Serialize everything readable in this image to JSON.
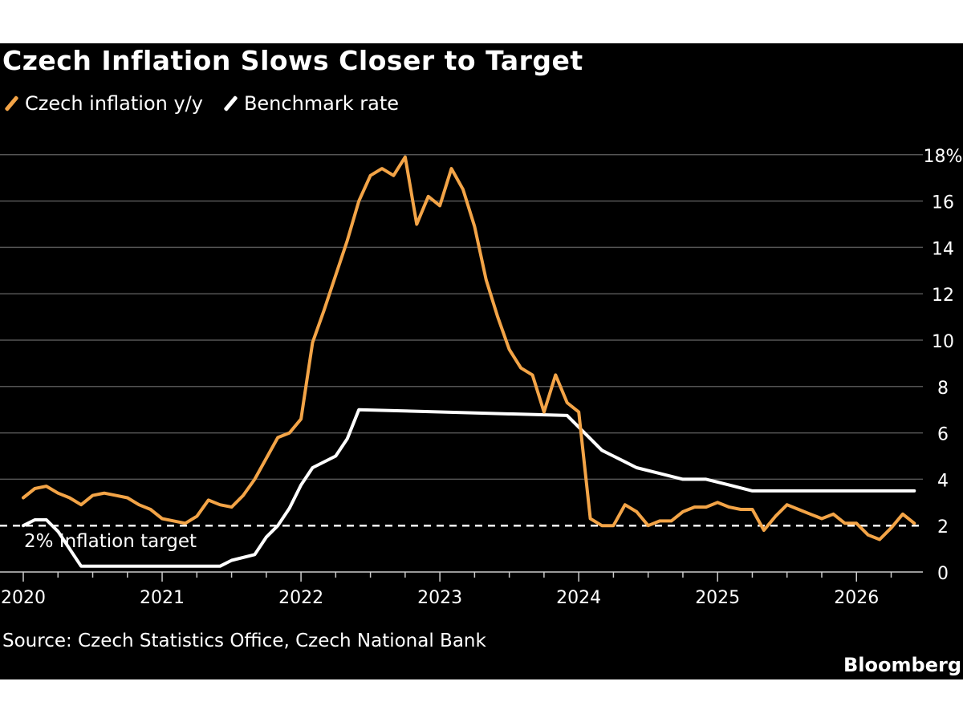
{
  "title": "Czech Inflation Slows Closer to Target",
  "source": "Source: Czech Statistics Office, Czech National Bank",
  "brand": "Bloomberg",
  "colors": {
    "background": "#000000",
    "inflation": "#f3a447",
    "rate": "#ffffff",
    "grid": "#555555",
    "text": "#ffffff"
  },
  "chart_data": {
    "type": "line",
    "title": "Czech Inflation Slows Closer to Target",
    "legend_position": "top-left",
    "grid": true,
    "x_unit": "month",
    "xlim": [
      "2020-01",
      "2026-07"
    ],
    "x_ticks": [
      "2020",
      "2021",
      "2022",
      "2023",
      "2024",
      "2025",
      "2026"
    ],
    "ylim": [
      0,
      18
    ],
    "y_ticks": [
      "0",
      "2",
      "4",
      "6",
      "8",
      "10",
      "12",
      "14",
      "16",
      "18%"
    ],
    "reference_line": {
      "y": 2,
      "style": "dashed",
      "label": "2% Inflation target"
    },
    "series": [
      {
        "name": "Czech inflation y/y",
        "color": "#f3a447",
        "points": [
          [
            "2020-01",
            3.2
          ],
          [
            "2020-02",
            3.6
          ],
          [
            "2020-03",
            3.7
          ],
          [
            "2020-04",
            3.4
          ],
          [
            "2020-05",
            3.2
          ],
          [
            "2020-06",
            2.9
          ],
          [
            "2020-07",
            3.3
          ],
          [
            "2020-08",
            3.4
          ],
          [
            "2020-09",
            3.3
          ],
          [
            "2020-10",
            3.2
          ],
          [
            "2020-11",
            2.9
          ],
          [
            "2020-12",
            2.7
          ],
          [
            "2021-01",
            2.3
          ],
          [
            "2021-02",
            2.2
          ],
          [
            "2021-03",
            2.1
          ],
          [
            "2021-04",
            2.4
          ],
          [
            "2021-05",
            3.1
          ],
          [
            "2021-06",
            2.9
          ],
          [
            "2021-07",
            2.8
          ],
          [
            "2021-08",
            3.3
          ],
          [
            "2021-09",
            4.0
          ],
          [
            "2021-10",
            4.9
          ],
          [
            "2021-11",
            5.8
          ],
          [
            "2021-12",
            6.0
          ],
          [
            "2022-01",
            6.6
          ],
          [
            "2022-02",
            9.9
          ],
          [
            "2022-03",
            11.3
          ],
          [
            "2022-04",
            12.8
          ],
          [
            "2022-05",
            14.3
          ],
          [
            "2022-06",
            16.0
          ],
          [
            "2022-07",
            17.1
          ],
          [
            "2022-08",
            17.4
          ],
          [
            "2022-09",
            17.1
          ],
          [
            "2022-10",
            17.9
          ],
          [
            "2022-11",
            15.0
          ],
          [
            "2022-12",
            16.2
          ],
          [
            "2023-01",
            15.8
          ],
          [
            "2023-02",
            17.4
          ],
          [
            "2023-03",
            16.5
          ],
          [
            "2023-04",
            14.9
          ],
          [
            "2023-05",
            12.6
          ],
          [
            "2023-06",
            11.0
          ],
          [
            "2023-07",
            9.6
          ],
          [
            "2023-08",
            8.8
          ],
          [
            "2023-09",
            8.5
          ],
          [
            "2023-10",
            6.9
          ],
          [
            "2023-11",
            8.5
          ],
          [
            "2023-12",
            7.3
          ],
          [
            "2024-01",
            6.9
          ],
          [
            "2024-02",
            2.3
          ],
          [
            "2024-03",
            2.0
          ],
          [
            "2024-04",
            2.0
          ],
          [
            "2024-05",
            2.9
          ],
          [
            "2024-06",
            2.6
          ],
          [
            "2024-07",
            2.0
          ],
          [
            "2024-08",
            2.2
          ],
          [
            "2024-09",
            2.2
          ],
          [
            "2024-10",
            2.6
          ],
          [
            "2024-11",
            2.8
          ],
          [
            "2024-12",
            2.8
          ],
          [
            "2025-01",
            3.0
          ],
          [
            "2025-02",
            2.8
          ],
          [
            "2025-03",
            2.7
          ],
          [
            "2025-04",
            2.7
          ],
          [
            "2025-05",
            1.8
          ],
          [
            "2025-06",
            2.4
          ],
          [
            "2025-07",
            2.9
          ],
          [
            "2025-08",
            2.7
          ],
          [
            "2025-09",
            2.5
          ],
          [
            "2025-10",
            2.3
          ],
          [
            "2025-11",
            2.5
          ],
          [
            "2025-12",
            2.1
          ],
          [
            "2026-01",
            2.1
          ],
          [
            "2026-02",
            1.6
          ],
          [
            "2026-03",
            1.4
          ],
          [
            "2026-04",
            1.9
          ],
          [
            "2026-05",
            2.5
          ],
          [
            "2026-06",
            2.1
          ]
        ]
      },
      {
        "name": "Benchmark rate",
        "color": "#ffffff",
        "points": [
          [
            "2020-01",
            2.0
          ],
          [
            "2020-02",
            2.25
          ],
          [
            "2020-03",
            2.25
          ],
          [
            "2020-04",
            1.75
          ],
          [
            "2020-05",
            1.0
          ],
          [
            "2020-06",
            0.25
          ],
          [
            "2021-01",
            0.25
          ],
          [
            "2021-06",
            0.25
          ],
          [
            "2021-07",
            0.5
          ],
          [
            "2021-09",
            0.75
          ],
          [
            "2021-10",
            1.5
          ],
          [
            "2021-11",
            2.0
          ],
          [
            "2021-12",
            2.75
          ],
          [
            "2022-01",
            3.75
          ],
          [
            "2022-02",
            4.5
          ],
          [
            "2022-04",
            5.0
          ],
          [
            "2022-05",
            5.75
          ],
          [
            "2022-06",
            7.0
          ],
          [
            "2023-12",
            6.75
          ],
          [
            "2024-01",
            6.25
          ],
          [
            "2024-02",
            5.75
          ],
          [
            "2024-03",
            5.25
          ],
          [
            "2024-05",
            4.75
          ],
          [
            "2024-06",
            4.5
          ],
          [
            "2024-08",
            4.25
          ],
          [
            "2024-10",
            4.0
          ],
          [
            "2024-12",
            4.0
          ],
          [
            "2025-02",
            3.75
          ],
          [
            "2025-04",
            3.5
          ],
          [
            "2025-05",
            3.5
          ],
          [
            "2026-06",
            3.5
          ]
        ]
      }
    ]
  }
}
